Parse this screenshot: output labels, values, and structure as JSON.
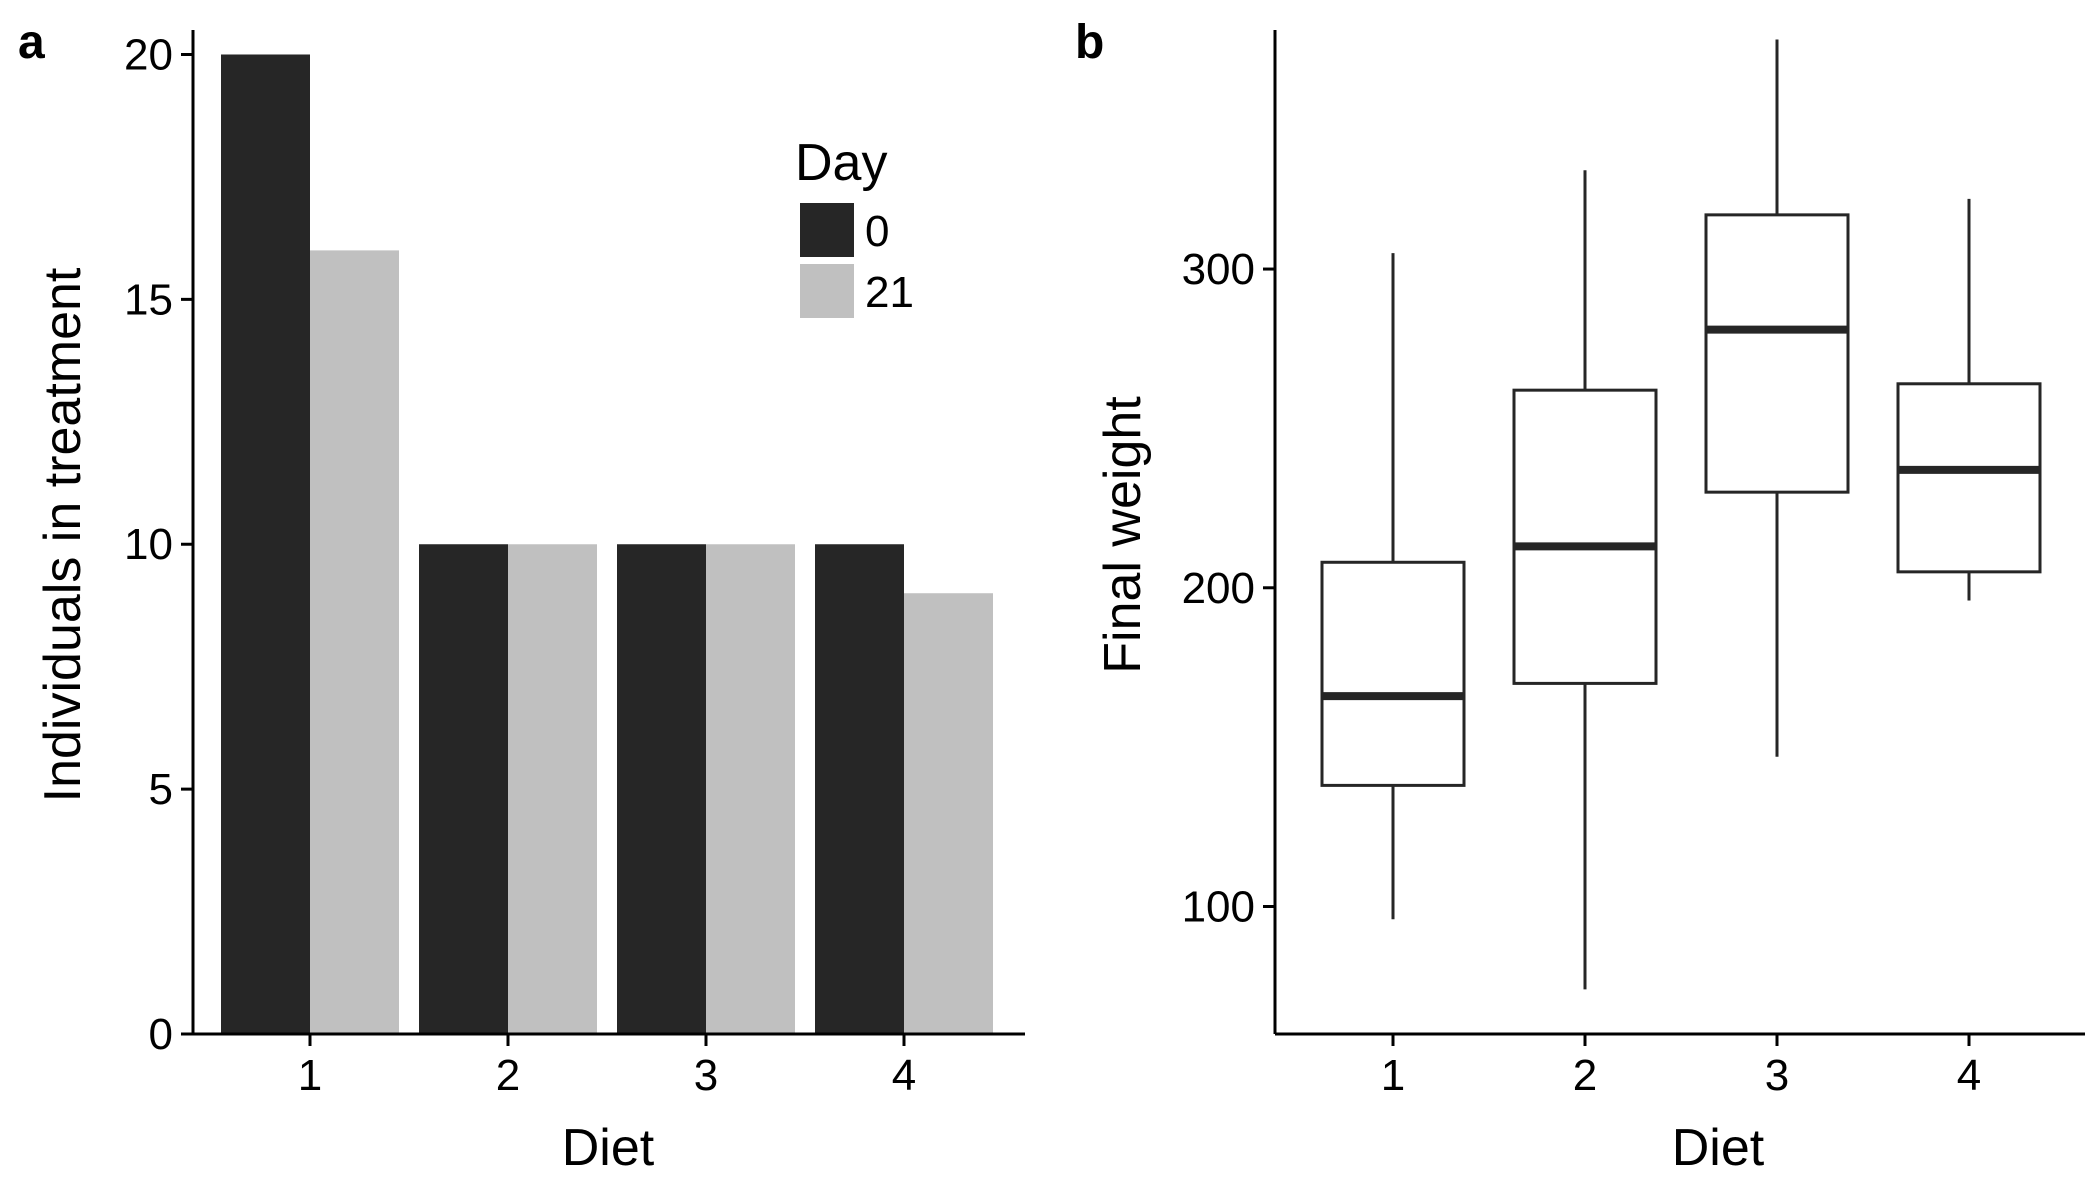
{
  "colors": {
    "day0": "#262626",
    "day21": "#c0c0c0",
    "axis": "#000000",
    "box_stroke": "#262626",
    "box_fill": "#ffffff"
  },
  "chart_data": [
    {
      "panel": "a",
      "type": "bar",
      "xlabel": "Diet",
      "ylabel": "Individuals in treatment",
      "ylim": [
        0,
        20.5
      ],
      "yticks": [
        0,
        5,
        10,
        15,
        20
      ],
      "categories": [
        "1",
        "2",
        "3",
        "4"
      ],
      "series": [
        {
          "name": "0",
          "color": "#262626",
          "values": [
            20,
            10,
            10,
            10
          ]
        },
        {
          "name": "21",
          "color": "#c0c0c0",
          "values": [
            16,
            10,
            10,
            9
          ]
        }
      ],
      "legend": {
        "title": "Day",
        "placement": "top-right",
        "entries": [
          "0",
          "21"
        ]
      },
      "grid": false
    },
    {
      "panel": "b",
      "type": "box",
      "xlabel": "Diet",
      "ylabel": "Final weight",
      "ylim": [
        60,
        375
      ],
      "yticks": [
        100,
        200,
        300
      ],
      "categories": [
        "1",
        "2",
        "3",
        "4"
      ],
      "boxes": [
        {
          "category": "1",
          "min": 96,
          "q1": 138,
          "median": 166,
          "q3": 208,
          "max": 305
        },
        {
          "category": "2",
          "min": 74,
          "q1": 170,
          "median": 213,
          "q3": 262,
          "max": 331
        },
        {
          "category": "3",
          "min": 147,
          "q1": 230,
          "median": 281,
          "q3": 317,
          "max": 372
        },
        {
          "category": "4",
          "min": 196,
          "q1": 205,
          "median": 237,
          "q3": 264,
          "max": 322
        }
      ],
      "grid": false
    }
  ]
}
